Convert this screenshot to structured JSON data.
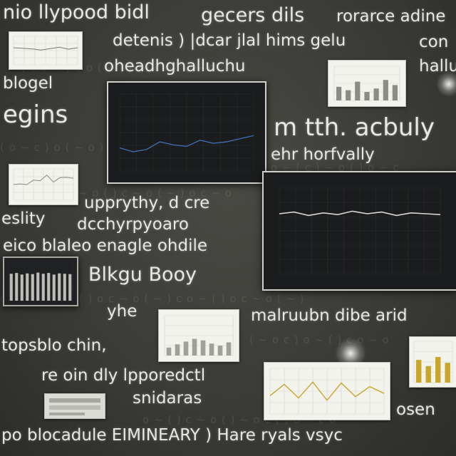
{
  "board_texts": {
    "t1": "nio llypood bidl",
    "t2": "gecers dils",
    "t3": "rorarce adine",
    "t4": "detenis ) |dcar jlal hims gelu",
    "t5": "con",
    "t6": "oheadhghalluchu",
    "t7": "hallu",
    "t8": "blogel",
    "t9": "egins",
    "t10": "m tth. acbuly",
    "t11": "ehr horfvally",
    "t12": "upprythy, d cre",
    "t13": "eslity",
    "t14": "dcchyrpyoaro",
    "t15": "eico blaleo enagle ohdile",
    "t16": "Blkgu Booy",
    "t17": "yhe",
    "t18": "malruubn dibe arid",
    "t19": "topsblo chin,",
    "t20": "re oin dly lpporedctl",
    "t21": "snidaras",
    "t22": "osen",
    "t23": "po blocadule EIMINEARY ) Hare ryals vsyc"
  },
  "colors": {
    "chalkboard": "#3b3b37",
    "chalk": "#e9e9e4",
    "screen": "#1b1c1d",
    "card": "#f3f3ee",
    "line_light": "#d8d8d2",
    "line_blue": "#3f78c4",
    "line_gold": "#c9a52a"
  },
  "chart_data": [
    {
      "type": "line",
      "x": [
        1,
        2,
        3,
        4,
        5,
        6,
        7,
        8
      ],
      "values": [
        60,
        58,
        56,
        52,
        57,
        62,
        55,
        60
      ],
      "ylim": [
        0,
        100
      ]
    },
    {
      "type": "line",
      "x": [
        1,
        2,
        3,
        4,
        5,
        6,
        7,
        8,
        9,
        10
      ],
      "values": [
        50,
        52,
        50,
        64,
        62,
        80,
        58,
        72,
        73,
        70
      ],
      "ylim": [
        0,
        100
      ]
    },
    {
      "type": "line",
      "x": [
        1,
        2,
        3,
        4,
        5,
        6,
        7,
        8,
        9,
        10,
        11
      ],
      "values": [
        30,
        25,
        28,
        38,
        34,
        32,
        40,
        36,
        38,
        42,
        46
      ],
      "ylim": [
        0,
        100
      ]
    },
    {
      "type": "bar",
      "values": [
        40,
        30,
        55,
        25,
        35,
        60,
        45
      ],
      "ylim": [
        0,
        100
      ]
    },
    {
      "type": "bar",
      "values": [
        20,
        28,
        35,
        42,
        38,
        30,
        25,
        33
      ],
      "ylim": [
        0,
        100
      ]
    },
    {
      "type": "bar",
      "values": [
        70,
        72,
        68,
        71,
        69,
        73,
        70,
        72,
        68,
        71,
        70,
        69
      ],
      "ylim": [
        0,
        100
      ]
    },
    {
      "type": "line",
      "x": [
        1,
        2,
        3,
        4,
        5,
        6,
        7,
        8,
        9
      ],
      "values": [
        40,
        65,
        35,
        70,
        30,
        68,
        38,
        60,
        45
      ],
      "ylim": [
        0,
        100
      ]
    },
    {
      "type": "bar",
      "values": [
        55,
        40,
        62,
        48
      ],
      "ylim": [
        0,
        100
      ]
    }
  ]
}
